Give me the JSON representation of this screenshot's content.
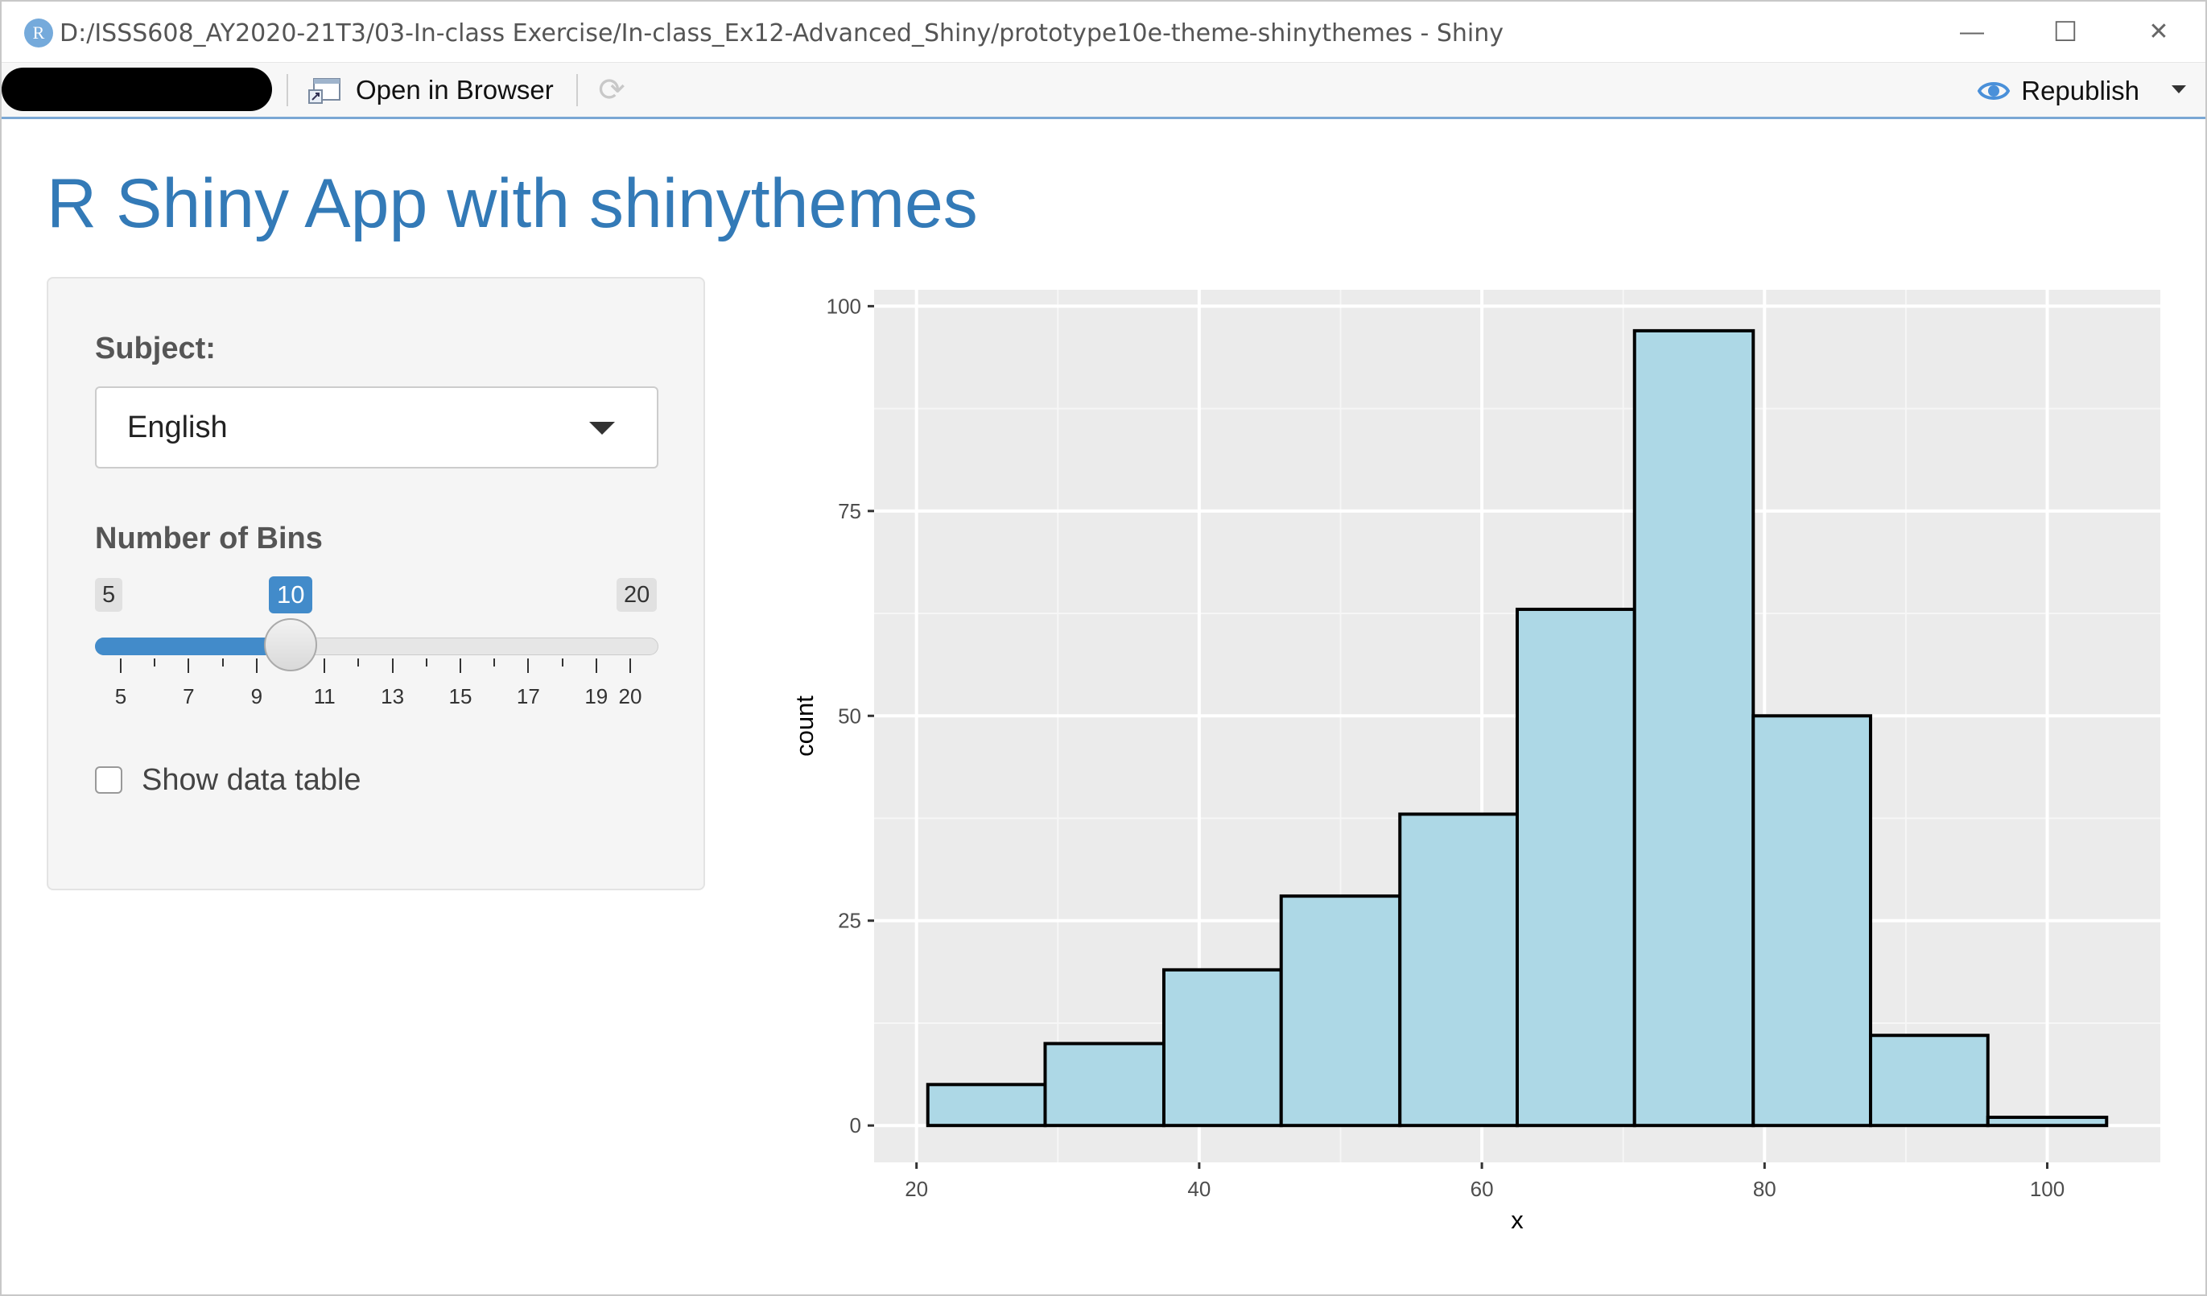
{
  "window": {
    "title": "D:/ISSS608_AY2020-21T3/03-In-class Exercise/In-class_Ex12-Advanced_Shiny/prototype10e-theme-shinythemes - Shiny",
    "logo_letter": "R",
    "minimize_glyph": "—",
    "maximize_glyph": "☐",
    "close_glyph": "✕"
  },
  "toolbar": {
    "open_browser_label": "Open in Browser",
    "republish_label": "Republish"
  },
  "app": {
    "title": "R Shiny App with shinythemes",
    "subject": {
      "label": "Subject:",
      "selected": "English"
    },
    "bins": {
      "label": "Number of Bins",
      "min_label": "5",
      "max_label": "20",
      "value_label": "10",
      "min": 5,
      "max": 20,
      "value": 10,
      "tick_labels": [
        "5",
        "7",
        "9",
        "11",
        "13",
        "15",
        "17",
        "19",
        "20"
      ]
    },
    "show_table": {
      "label": "Show data table",
      "checked": false
    }
  },
  "colors": {
    "accent": "#337ab7",
    "slider": "#428bca",
    "bar_fill": "#add8e6",
    "panel_bg": "#ebebeb"
  },
  "chart_data": {
    "type": "bar",
    "xlabel": "x",
    "ylabel": "count",
    "xlim": [
      17,
      108
    ],
    "ylim": [
      -4.5,
      102
    ],
    "x_ticks": [
      20,
      40,
      60,
      80,
      100
    ],
    "x_tick_labels": [
      "20",
      "40",
      "60",
      "80",
      "100"
    ],
    "y_ticks": [
      0,
      25,
      50,
      75,
      100
    ],
    "y_tick_labels": [
      "0",
      "25",
      "50",
      "75",
      "100"
    ],
    "grid": true,
    "bins": [
      {
        "x0": 20.8,
        "x1": 29.1,
        "count": 5
      },
      {
        "x0": 29.1,
        "x1": 37.5,
        "count": 10
      },
      {
        "x0": 37.5,
        "x1": 45.8,
        "count": 19
      },
      {
        "x0": 45.8,
        "x1": 54.2,
        "count": 28
      },
      {
        "x0": 54.2,
        "x1": 62.5,
        "count": 38
      },
      {
        "x0": 62.5,
        "x1": 70.8,
        "count": 63
      },
      {
        "x0": 70.8,
        "x1": 79.2,
        "count": 97
      },
      {
        "x0": 79.2,
        "x1": 87.5,
        "count": 50
      },
      {
        "x0": 87.5,
        "x1": 95.8,
        "count": 11
      },
      {
        "x0": 95.8,
        "x1": 104.2,
        "count": 1
      }
    ]
  }
}
